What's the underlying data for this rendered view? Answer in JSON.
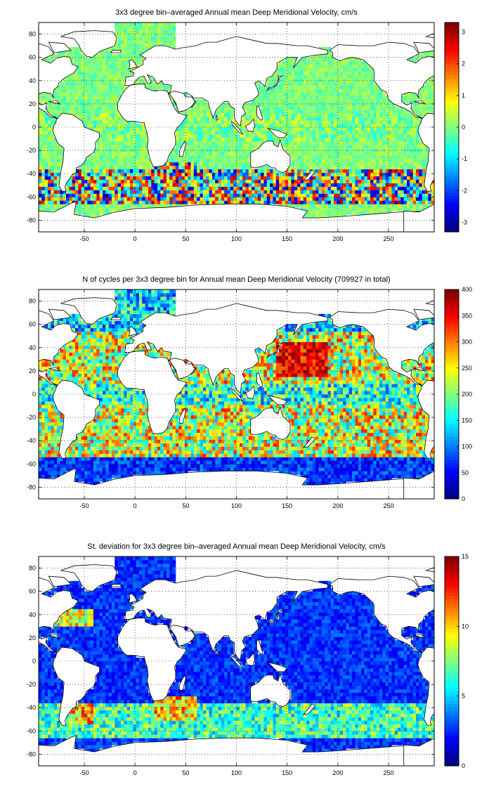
{
  "panels": [
    {
      "title": "3x3 degree bin–averaged Annual mean Deep Meridional Velocity, cm/s",
      "field": "mean",
      "x_ticks": [
        "-50",
        "0",
        "50",
        "100",
        "150",
        "200",
        "250"
      ],
      "y_ticks": [
        "80",
        "60",
        "40",
        "20",
        "0",
        "-20",
        "-40",
        "-60",
        "-80"
      ],
      "colorbar": {
        "min": -3.3,
        "max": 3.3,
        "ticks": [
          "3",
          "2",
          "1",
          "0",
          "-1",
          "-2",
          "-3"
        ]
      }
    },
    {
      "title": "N of cycles per 3x3 degree bin for Annual mean Deep Meridional Velocity (709927 in total)",
      "field": "count",
      "x_ticks": [
        "-50",
        "0",
        "50",
        "100",
        "150",
        "200",
        "250"
      ],
      "y_ticks": [
        "80",
        "60",
        "40",
        "20",
        "0",
        "-20",
        "-40",
        "-60",
        "-80"
      ],
      "colorbar": {
        "min": 0,
        "max": 400,
        "ticks": [
          "400",
          "350",
          "300",
          "250",
          "200",
          "150",
          "100",
          "50",
          "0"
        ]
      }
    },
    {
      "title": "St. deviation for 3x3 degree bin–averaged Annual mean Deep Meridional Velocity, cm/s",
      "field": "std",
      "x_ticks": [
        "-50",
        "0",
        "50",
        "100",
        "150",
        "200",
        "250"
      ],
      "y_ticks": [
        "80",
        "60",
        "40",
        "20",
        "0",
        "-20",
        "-40",
        "-60",
        "-80"
      ],
      "colorbar": {
        "min": 0,
        "max": 15,
        "ticks": [
          "15",
          "10",
          "5",
          "0"
        ]
      }
    }
  ],
  "map": {
    "lon_range": [
      -95,
      295
    ],
    "lat_range": [
      -90,
      90
    ],
    "bin_size_deg": 3,
    "grid": "dotted",
    "colormap": "jet"
  }
}
